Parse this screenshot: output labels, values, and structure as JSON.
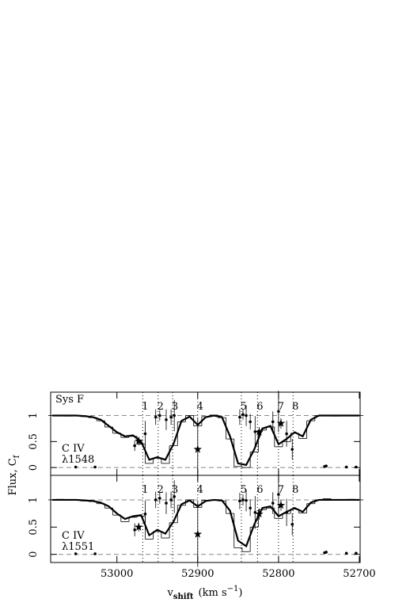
{
  "chart_data": [
    {
      "type": "spectrum",
      "annotations": [
        "Sys F",
        "C IV",
        "λ1548"
      ],
      "ylabel": [
        "Flux, C",
        "f"
      ],
      "xlim": [
        53082,
        52699
      ],
      "ylim": [
        -0.15,
        1.45
      ],
      "yticks": [
        0,
        0.5,
        1
      ],
      "xticks": [
        53000,
        52900,
        52800,
        52700
      ],
      "hlines": [
        0,
        1
      ],
      "components": {
        "labels": [
          "1",
          "2",
          "3",
          "4",
          "5",
          "6",
          "7",
          "8"
        ],
        "x": [
          52968,
          52949,
          52931,
          52900,
          52846,
          52826,
          52800,
          52782
        ]
      },
      "x": [
        53080,
        53070,
        53060,
        53050,
        53040,
        53030,
        53020,
        53010,
        53000,
        52990,
        52980,
        52970,
        52960,
        52950,
        52940,
        52930,
        52920,
        52910,
        52900,
        52890,
        52880,
        52870,
        52860,
        52850,
        52840,
        52830,
        52820,
        52810,
        52800,
        52790,
        52780,
        52770,
        52760,
        52750,
        52740,
        52730,
        52720,
        52710,
        52700
      ],
      "model": [
        1,
        1,
        1,
        1,
        0.99,
        0.97,
        0.92,
        0.8,
        0.68,
        0.6,
        0.62,
        0.5,
        0.15,
        0.2,
        0.15,
        0.45,
        0.9,
        0.98,
        0.82,
        0.97,
        1,
        0.97,
        0.6,
        0.08,
        0.05,
        0.35,
        0.75,
        0.8,
        0.45,
        0.55,
        0.68,
        0.6,
        0.92,
        1,
        1,
        1,
        1,
        1,
        1
      ],
      "data": [
        1,
        1.01,
        0.99,
        1,
        0.98,
        0.96,
        0.9,
        0.78,
        0.66,
        0.58,
        0.6,
        0.45,
        0.08,
        0.18,
        0.08,
        0.42,
        0.88,
        1,
        0.8,
        0.98,
        1.01,
        0.96,
        0.55,
        0.02,
        0,
        0.3,
        0.72,
        0.78,
        0.4,
        0.5,
        0.66,
        0.56,
        0.9,
        1,
        1.01,
        0.99,
        1,
        1,
        1
      ],
      "points": {
        "x": [
          53051,
          53027,
          52978,
          52973,
          52965,
          52952,
          52947,
          52939,
          52933,
          52929,
          52900,
          52848,
          52844,
          52840,
          52835,
          52829,
          52824,
          52807,
          52800,
          52797,
          52790,
          52783,
          52743,
          52741,
          52716,
          52704
        ],
        "values": [
          0.01,
          0.01,
          0.42,
          0.51,
          0.65,
          0.97,
          1.0,
          0.92,
          0.97,
          1.0,
          0.35,
          0.97,
          1.02,
          1.0,
          0.88,
          0.69,
          0.68,
          0.88,
          1.08,
          0.85,
          0.65,
          0.35,
          0.02,
          0.03,
          0.01,
          0.01
        ],
        "errors": [
          0.02,
          0.02,
          0.1,
          0.08,
          0.25,
          0.15,
          0.1,
          0.2,
          0.15,
          0.3,
          0.6,
          0.15,
          0.1,
          0.2,
          0.15,
          0.3,
          0.1,
          0.2,
          0.4,
          0.1,
          0.25,
          0.2,
          0.02,
          0.02,
          0.02,
          0.02
        ],
        "markers": [
          "dot",
          "dot",
          "dot",
          "star",
          "dot",
          "dot",
          "dot",
          "dot",
          "dot",
          "dot",
          "star",
          "dot",
          "dot",
          "dot",
          "dot",
          "dot",
          "star",
          "dot",
          "dot",
          "star",
          "dot",
          "dot",
          "dot",
          "dot",
          "dot",
          "dot"
        ]
      }
    },
    {
      "type": "spectrum",
      "annotations": [
        "C IV",
        "λ1551"
      ],
      "xlabel": [
        "v",
        "shift",
        "(km s",
        "−1",
        ")"
      ],
      "xlim": [
        53082,
        52699
      ],
      "ylim": [
        -0.15,
        1.45
      ],
      "yticks": [
        0,
        0.5,
        1
      ],
      "xticks": [
        53000,
        52900,
        52800,
        52700
      ],
      "hlines": [
        0,
        1
      ],
      "components": {
        "labels": [
          "1",
          "2",
          "3",
          "4",
          "5",
          "6",
          "7",
          "8"
        ],
        "x": [
          52968,
          52949,
          52931,
          52900,
          52846,
          52826,
          52800,
          52782
        ]
      },
      "x": [
        53080,
        53070,
        53060,
        53050,
        53040,
        53030,
        53020,
        53010,
        53000,
        52990,
        52980,
        52970,
        52960,
        52950,
        52940,
        52930,
        52920,
        52910,
        52900,
        52890,
        52880,
        52870,
        52860,
        52850,
        52840,
        52830,
        52820,
        52810,
        52800,
        52790,
        52780,
        52770,
        52760,
        52750,
        52740,
        52730,
        52720,
        52710,
        52700
      ],
      "model": [
        1,
        1,
        1,
        1,
        0.99,
        0.98,
        0.95,
        0.88,
        0.75,
        0.65,
        0.7,
        0.72,
        0.35,
        0.45,
        0.38,
        0.6,
        0.92,
        0.99,
        0.88,
        0.98,
        1,
        0.99,
        0.8,
        0.25,
        0.15,
        0.55,
        0.85,
        0.88,
        0.7,
        0.78,
        0.85,
        0.78,
        0.95,
        1,
        1,
        1,
        1,
        1,
        1
      ],
      "data": [
        1,
        1.01,
        0.99,
        1,
        0.98,
        0.97,
        0.93,
        0.85,
        0.72,
        0.6,
        0.68,
        0.7,
        0.28,
        0.42,
        0.3,
        0.58,
        0.9,
        1,
        0.86,
        0.99,
        1,
        0.98,
        0.75,
        0.12,
        0.05,
        0.5,
        0.82,
        0.85,
        0.66,
        0.75,
        0.83,
        0.76,
        0.93,
        1,
        1.02,
        1,
        1,
        1.01,
        1
      ],
      "points": {
        "x": [
          53051,
          53027,
          52978,
          52973,
          52965,
          52952,
          52947,
          52939,
          52933,
          52929,
          52900,
          52848,
          52844,
          52840,
          52835,
          52829,
          52824,
          52807,
          52800,
          52797,
          52790,
          52783,
          52743,
          52741,
          52716,
          52704
        ],
        "values": [
          0.01,
          0.01,
          0.45,
          0.5,
          0.74,
          1.0,
          1.03,
          0.94,
          1.0,
          1.06,
          0.37,
          0.98,
          1.0,
          0.99,
          0.85,
          0.77,
          0.74,
          0.94,
          1.1,
          0.9,
          0.77,
          0.55,
          0.03,
          0.04,
          0.02,
          0.02
        ],
        "errors": [
          0.02,
          0.02,
          0.12,
          0.08,
          0.25,
          0.15,
          0.1,
          0.2,
          0.15,
          0.3,
          0.6,
          0.15,
          0.1,
          0.2,
          0.15,
          0.3,
          0.1,
          0.2,
          0.4,
          0.1,
          0.25,
          0.2,
          0.02,
          0.02,
          0.02,
          0.02
        ],
        "markers": [
          "dot",
          "dot",
          "dot",
          "star",
          "dot",
          "dot",
          "dot",
          "dot",
          "dot",
          "dot",
          "star",
          "dot",
          "dot",
          "dot",
          "dot",
          "dot",
          "star",
          "dot",
          "dot",
          "star",
          "dot",
          "dot",
          "dot",
          "dot",
          "dot",
          "dot"
        ]
      }
    }
  ]
}
